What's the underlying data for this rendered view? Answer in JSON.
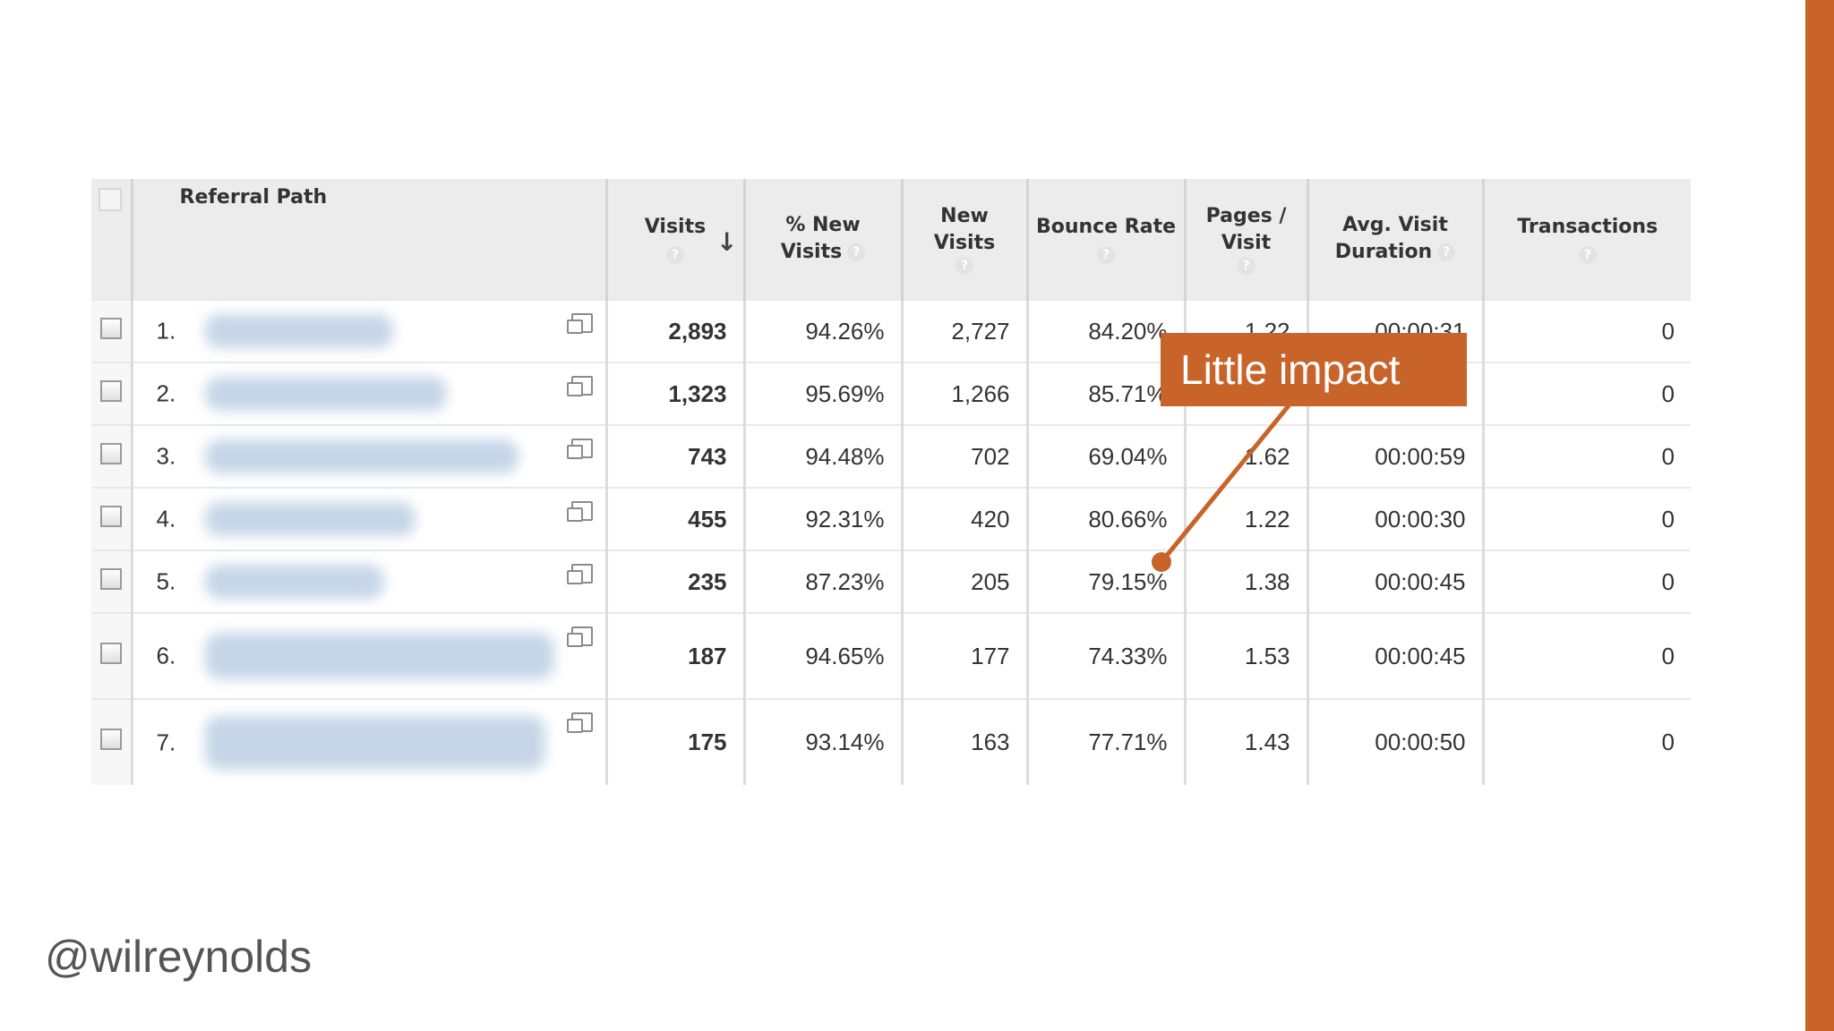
{
  "slide": {
    "handle": "@wilreynolds"
  },
  "table": {
    "columns": [
      {
        "label_lines": [
          "Referral Path"
        ],
        "help": false
      },
      {
        "label_lines": [
          "Visits"
        ],
        "help": true,
        "sorted": true
      },
      {
        "label_lines": [
          "% New",
          "Visits"
        ],
        "help": true
      },
      {
        "label_lines": [
          "New",
          "Visits"
        ],
        "help": true
      },
      {
        "label_lines": [
          "Bounce Rate"
        ],
        "help": true
      },
      {
        "label_lines": [
          "Pages /",
          "Visit"
        ],
        "help": true
      },
      {
        "label_lines": [
          "Avg. Visit",
          "Duration"
        ],
        "help": true
      },
      {
        "label_lines": [
          "Transactions"
        ],
        "help": true
      }
    ],
    "help_glyph": "?",
    "sort_glyph": "↓",
    "rows": [
      {
        "rank": "1.",
        "visits": "2,893",
        "pct_new": "94.26%",
        "new_visits": "2,727",
        "bounce": "84.20%",
        "pages": "1.22",
        "duration": "00:00:31",
        "transactions": "0"
      },
      {
        "rank": "2.",
        "visits": "1,323",
        "pct_new": "95.69%",
        "new_visits": "1,266",
        "bounce": "85.71%",
        "pages": "",
        "duration": "",
        "transactions": "0"
      },
      {
        "rank": "3.",
        "visits": "743",
        "pct_new": "94.48%",
        "new_visits": "702",
        "bounce": "69.04%",
        "pages": "1.62",
        "duration": "00:00:59",
        "transactions": "0"
      },
      {
        "rank": "4.",
        "visits": "455",
        "pct_new": "92.31%",
        "new_visits": "420",
        "bounce": "80.66%",
        "pages": "1.22",
        "duration": "00:00:30",
        "transactions": "0"
      },
      {
        "rank": "5.",
        "visits": "235",
        "pct_new": "87.23%",
        "new_visits": "205",
        "bounce": "79.15%",
        "pages": "1.38",
        "duration": "00:00:45",
        "transactions": "0"
      },
      {
        "rank": "6.",
        "visits": "187",
        "pct_new": "94.65%",
        "new_visits": "177",
        "bounce": "74.33%",
        "pages": "1.53",
        "duration": "00:00:45",
        "transactions": "0"
      },
      {
        "rank": "7.",
        "visits": "175",
        "pct_new": "93.14%",
        "new_visits": "163",
        "bounce": "77.71%",
        "pages": "1.43",
        "duration": "00:00:50",
        "transactions": "0"
      }
    ]
  },
  "callout": {
    "text": "Little impact",
    "color": "#c8642a"
  },
  "colors": {
    "accent": "#c8642a",
    "header_bg": "#ececec"
  }
}
